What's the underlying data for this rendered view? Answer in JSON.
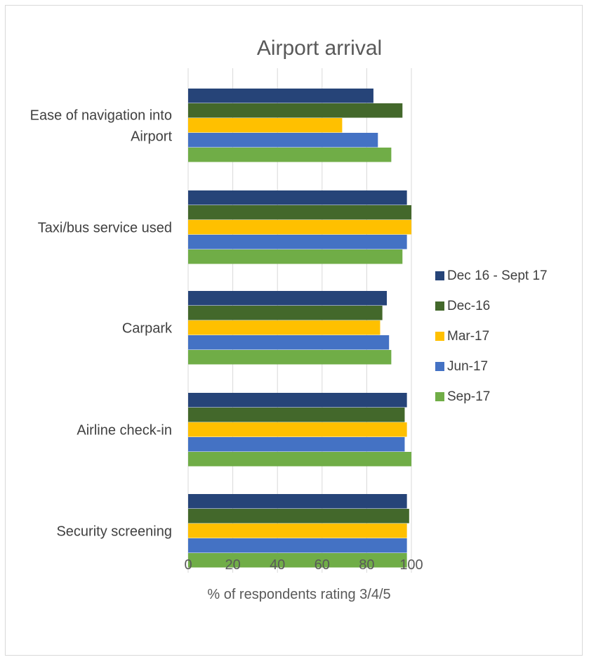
{
  "chart_data": {
    "type": "bar",
    "orientation": "horizontal",
    "title": "Airport arrival",
    "xlabel": "% of respondents rating 3/4/5",
    "ylabel": "",
    "xlim": [
      0,
      100
    ],
    "xticks": [
      0,
      20,
      40,
      60,
      80,
      100
    ],
    "grid": true,
    "legend_position": "right",
    "categories": [
      [
        "Ease of navigation into",
        "Airport"
      ],
      [
        "Taxi/bus service used"
      ],
      [
        "Carpark"
      ],
      [
        "Airline check-in"
      ],
      [
        "Security screening"
      ]
    ],
    "series": [
      {
        "name": "Dec 16 - Sept 17",
        "color": "#264478",
        "values": [
          83,
          98,
          89,
          98,
          98
        ]
      },
      {
        "name": "Dec-16",
        "color": "#43682b",
        "values": [
          96,
          100,
          87,
          97,
          99
        ]
      },
      {
        "name": "Mar-17",
        "color": "#ffc000",
        "values": [
          69,
          100,
          86,
          98,
          98
        ]
      },
      {
        "name": "Jun-17",
        "color": "#4472c4",
        "values": [
          85,
          98,
          90,
          97,
          98
        ]
      },
      {
        "name": "Sep-17",
        "color": "#70ad47",
        "values": [
          91,
          96,
          91,
          100,
          98
        ]
      }
    ]
  }
}
